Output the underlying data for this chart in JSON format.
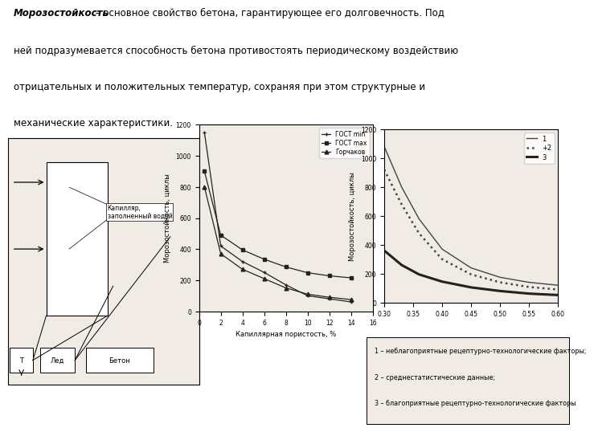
{
  "bg_color": "#ffffff",
  "chart_bg": "#f0ebe4",
  "title_italic": "Морозостойкость",
  "title_rest": " – основное свойство бетона, гарантирующее его долговечность. Под",
  "line2": "ней подразумевается способность бетона противостоять периодическому воздействию",
  "line3": "отрицательных и положительных температур, сохраняя при этом структурные и",
  "line4": "механические характеристики.",
  "graph1": {
    "xlabel": "Капиллярная пористость, %",
    "ylabel": "Морозостойкость, циклы",
    "xlim": [
      0,
      16
    ],
    "ylim": [
      0,
      1200
    ],
    "xticks": [
      0,
      2,
      4,
      6,
      8,
      10,
      12,
      14,
      16
    ],
    "yticks": [
      0,
      200,
      400,
      600,
      800,
      1000,
      1200
    ],
    "series": [
      {
        "label": "ГОСТ min",
        "x": [
          0.5,
          2,
          4,
          6,
          8,
          10,
          12,
          14
        ],
        "y": [
          1150,
          420,
          320,
          250,
          170,
          100,
          80,
          60
        ],
        "marker": "+",
        "linestyle": "-",
        "color": "#222222"
      },
      {
        "label": "ГОСТ max",
        "x": [
          0.5,
          2,
          4,
          6,
          8,
          10,
          12,
          14
        ],
        "y": [
          900,
          490,
          395,
          335,
          285,
          248,
          228,
          215
        ],
        "marker": "s",
        "linestyle": "-",
        "color": "#222222"
      },
      {
        "label": "Горчаков",
        "x": [
          0.5,
          2,
          4,
          6,
          8,
          10,
          12,
          14
        ],
        "y": [
          800,
          370,
          270,
          210,
          150,
          110,
          90,
          75
        ],
        "marker": "^",
        "linestyle": "-",
        "color": "#222222"
      }
    ]
  },
  "graph2": {
    "ylabel": "Морозостойкость, циклы",
    "xlim": [
      0.3,
      0.6
    ],
    "ylim": [
      0,
      1200
    ],
    "xticks": [
      0.3,
      0.35,
      0.4,
      0.45,
      0.5,
      0.55,
      0.6
    ],
    "yticks": [
      0,
      200,
      400,
      600,
      800,
      1000,
      1200
    ],
    "series": [
      {
        "label": "1",
        "x": [
          0.3,
          0.33,
          0.36,
          0.4,
          0.45,
          0.5,
          0.55,
          0.6
        ],
        "y": [
          1080,
          800,
          580,
          370,
          240,
          175,
          140,
          120
        ],
        "linestyle": "-",
        "linewidth": 1.0,
        "color": "#444444"
      },
      {
        "label": "+2",
        "x": [
          0.3,
          0.33,
          0.36,
          0.4,
          0.45,
          0.5,
          0.55,
          0.6
        ],
        "y": [
          920,
          680,
          480,
          300,
          195,
          140,
          108,
          90
        ],
        "linestyle": ":",
        "linewidth": 1.8,
        "color": "#444444"
      },
      {
        "label": "3",
        "x": [
          0.3,
          0.33,
          0.36,
          0.4,
          0.45,
          0.5,
          0.55,
          0.6
        ],
        "y": [
          360,
          260,
          195,
          145,
          105,
          80,
          62,
          52
        ],
        "linestyle": "-",
        "linewidth": 2.2,
        "color": "#222222"
      }
    ],
    "legend_lines": [
      "1",
      "+2",
      "3"
    ],
    "legend_text": "1 – неблагоприятные рецептурно-технологические факторы;",
    "legend_text2": "2 – среднестатистические данные;",
    "legend_text3": "3 – благоприятные рецептурно-технологические факторы"
  },
  "diagram": {
    "cap_label": "Капилляр,\nзаполненный водой",
    "labels": [
      "Т",
      "Лед",
      "Бетон"
    ]
  }
}
